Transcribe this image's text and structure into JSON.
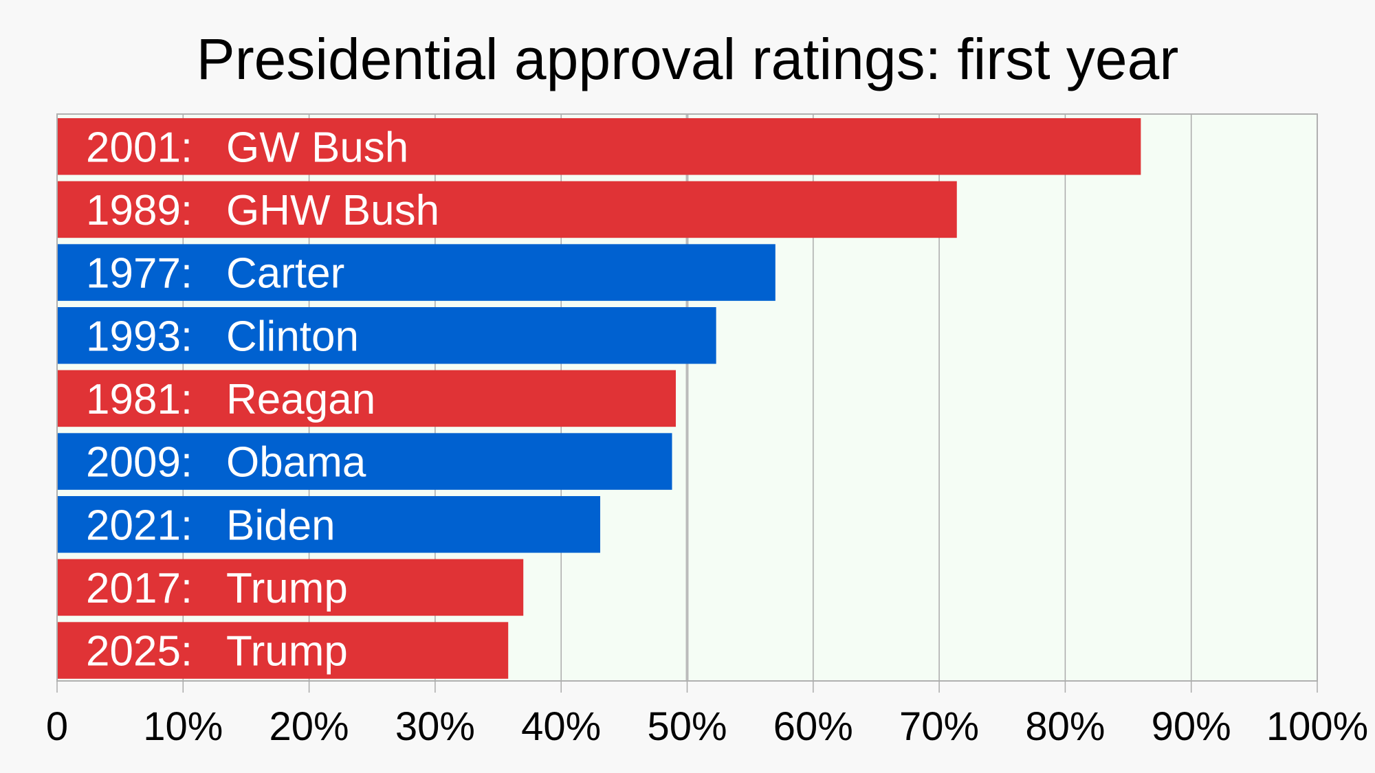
{
  "chart_data": {
    "type": "bar",
    "orientation": "horizontal",
    "title": "Presidential approval ratings: first year",
    "xlabel": "",
    "ylabel": "",
    "xlim": [
      0,
      100
    ],
    "grid": true,
    "legend": "none",
    "x_ticks": [
      "0",
      "10%",
      "20%",
      "30%",
      "40%",
      "50%",
      "60%",
      "70%",
      "80%",
      "90%",
      "100%"
    ],
    "categories": [
      {
        "year": "2001:",
        "name": "GW Bush",
        "value": 86,
        "party": "republican"
      },
      {
        "year": "1989:",
        "name": "GHW Bush",
        "value": 71.4,
        "party": "republican"
      },
      {
        "year": "1977:",
        "name": "Carter",
        "value": 57,
        "party": "democrat"
      },
      {
        "year": "1993:",
        "name": "Clinton",
        "value": 52.3,
        "party": "democrat"
      },
      {
        "year": "1981:",
        "name": "Reagan",
        "value": 49.1,
        "party": "republican"
      },
      {
        "year": "2009:",
        "name": "Obama",
        "value": 48.8,
        "party": "democrat"
      },
      {
        "year": "2021:",
        "name": "Biden",
        "value": 43.1,
        "party": "democrat"
      },
      {
        "year": "2017:",
        "name": "Trump",
        "value": 37,
        "party": "republican"
      },
      {
        "year": "2025:",
        "name": "Trump",
        "value": 35.8,
        "party": "republican"
      }
    ],
    "colors": {
      "republican": "#e03336",
      "democrat": "#0061d0",
      "plot_background": "#f5fdf5",
      "page_background": "#f8f8f8"
    }
  }
}
